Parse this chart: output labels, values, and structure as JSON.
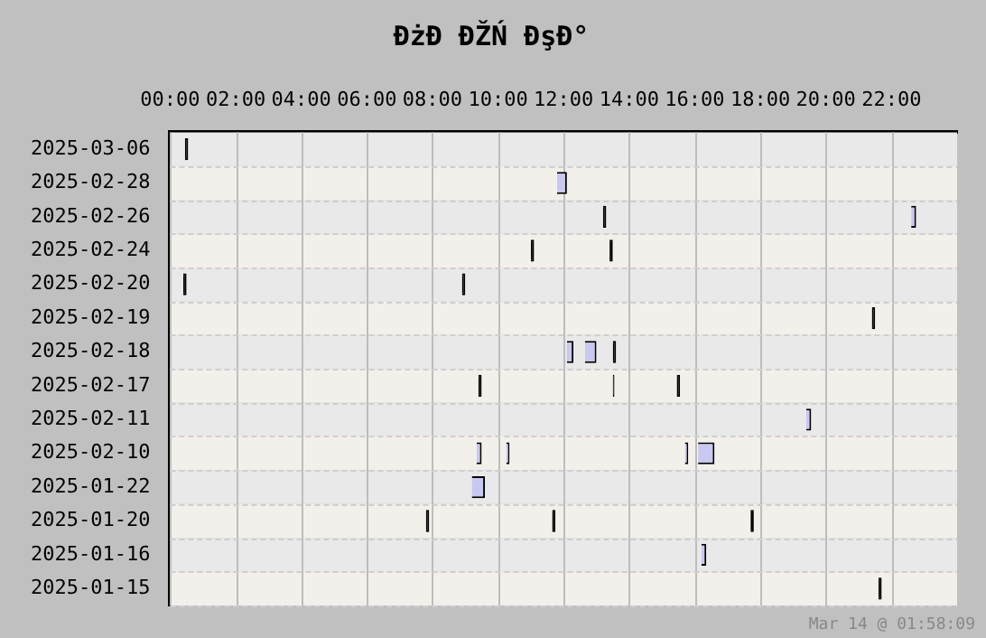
{
  "chart_data": {
    "type": "bar",
    "orientation": "horizontal",
    "title": "ĐżĐ ĐŽŃ ĐşĐ°",
    "categories": [
      "2025-03-06",
      "2025-02-28",
      "2025-02-26",
      "2025-02-24",
      "2025-02-20",
      "2025-02-19",
      "2025-02-18",
      "2025-02-17",
      "2025-02-11",
      "2025-02-10",
      "2025-01-22",
      "2025-01-20",
      "2025-01-16",
      "2025-01-15"
    ],
    "series": [
      {
        "base": [
          0.45,
          11.8,
          13.2,
          11.0,
          0.4,
          21.4,
          12.1,
          9.4,
          19.4,
          9.35,
          9.2,
          7.8,
          16.2,
          21.6
        ],
        "values": [
          0.1,
          0.3,
          0.1,
          0.1,
          0.1,
          0.1,
          0.2,
          0.1,
          0.15,
          0.15,
          0.4,
          0.1,
          0.15,
          0.1
        ],
        "colors": [
          "#000000",
          "#c8c8f0",
          "#000000",
          "#000000",
          "#000000",
          "#000000",
          "#c8c8f0",
          "#000000",
          "#c8c8f0",
          "#c8c8f0",
          "#c8c8f0",
          "#000000",
          "#c8c8f0",
          "#000000"
        ]
      },
      {
        "base": [
          null,
          null,
          22.6,
          13.4,
          8.9,
          null,
          12.65,
          13.5,
          null,
          10.25,
          null,
          11.65,
          null,
          null
        ],
        "values": [
          null,
          null,
          0.15,
          0.1,
          0.1,
          null,
          0.35,
          0.05,
          null,
          0.1,
          null,
          0.1,
          null,
          null
        ],
        "colors": [
          null,
          null,
          "#c8c8f0",
          "#000000",
          "#000000",
          null,
          "#c8c8f0",
          "#000000",
          null,
          "#c8c8f0",
          null,
          "#000000",
          null,
          null
        ]
      },
      {
        "base": [
          null,
          null,
          null,
          null,
          null,
          null,
          13.5,
          15.45,
          null,
          15.7,
          null,
          17.7,
          null,
          null
        ],
        "values": [
          null,
          null,
          null,
          null,
          null,
          null,
          0.1,
          0.1,
          null,
          0.1,
          null,
          0.1,
          null,
          null
        ],
        "colors": [
          null,
          null,
          null,
          null,
          null,
          null,
          "#000000",
          "#000000",
          null,
          "#c8c8f0",
          null,
          "#000000",
          null,
          null
        ]
      },
      {
        "base": [
          null,
          null,
          null,
          null,
          null,
          null,
          null,
          null,
          null,
          16.1,
          null,
          null,
          null,
          null
        ],
        "values": [
          null,
          null,
          null,
          null,
          null,
          null,
          null,
          null,
          null,
          0.5,
          null,
          null,
          null,
          null
        ],
        "colors": [
          null,
          null,
          null,
          null,
          null,
          null,
          null,
          null,
          null,
          "#c8c8f0",
          null,
          null,
          null,
          null
        ]
      }
    ],
    "xlim": [
      0,
      24
    ],
    "xticks": [
      {
        "value": 0,
        "label": "00:00"
      },
      {
        "value": 2,
        "label": "02:00"
      },
      {
        "value": 4,
        "label": "04:00"
      },
      {
        "value": 6,
        "label": "06:00"
      },
      {
        "value": 8,
        "label": "08:00"
      },
      {
        "value": 10,
        "label": "10:00"
      },
      {
        "value": 12,
        "label": "12:00"
      },
      {
        "value": 14,
        "label": "14:00"
      },
      {
        "value": 16,
        "label": "16:00"
      },
      {
        "value": 18,
        "label": "18:00"
      },
      {
        "value": 20,
        "label": "20:00"
      },
      {
        "value": 22,
        "label": "22:00"
      }
    ],
    "grid": true,
    "legend": false,
    "annotations": [
      "Mar 14 @ 01:58:09"
    ]
  }
}
